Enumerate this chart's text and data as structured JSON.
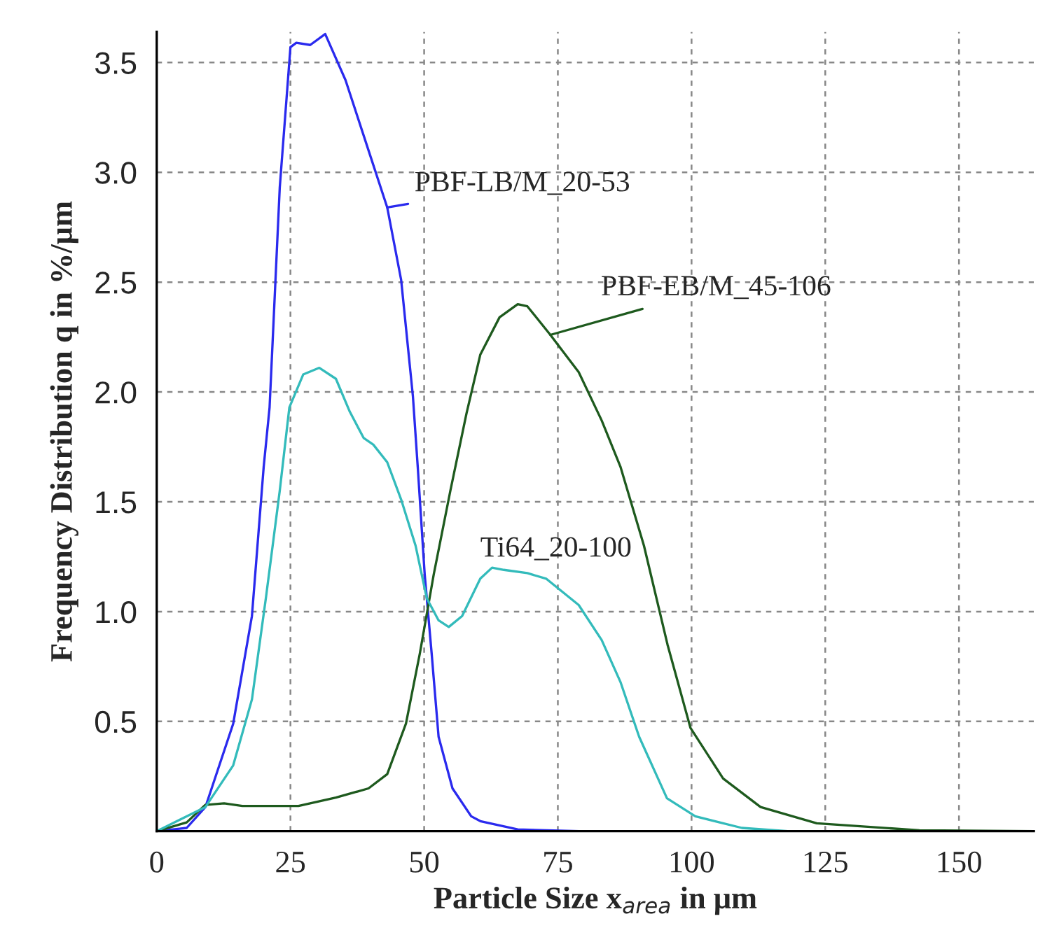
{
  "chart_data": {
    "type": "line",
    "xlabel": "Particle Size x$_{area}$ in μm",
    "ylabel": "Frequency Distribution q in %/μm",
    "xlim": [
      0,
      164
    ],
    "xticks": [
      0,
      25,
      50,
      75,
      100,
      125,
      150
    ],
    "ylim": [
      0,
      3.64
    ],
    "yticks": [
      {
        "value": 0,
        "label": null
      },
      0.5,
      {
        "value": 1,
        "label": "1.0"
      },
      1.5,
      {
        "value": 2,
        "label": "2.0"
      },
      2.5,
      {
        "value": 3,
        "label": "3.0"
      },
      3.5
    ],
    "grid": true,
    "legend": false,
    "marker": "none",
    "line_style": "solid",
    "series": [
      {
        "name": "PBF-LB/M_20-53",
        "color": "#2a2aee",
        "x": [
          0,
          5.6,
          9.1,
          14.3,
          17.8,
          20,
          21.1,
          23,
          25,
          26.1,
          28.7,
          31.5,
          35.3,
          39.6,
          43.1,
          45.7,
          47.9,
          48.8,
          50.1,
          51.4,
          52.7,
          55.3,
          58.8,
          60.5,
          67.5,
          79,
          164
        ],
        "values": [
          0,
          0.015,
          0.11,
          0.49,
          0.98,
          1.66,
          1.93,
          2.93,
          3.57,
          3.59,
          3.58,
          3.63,
          3.42,
          3.1,
          2.84,
          2.51,
          1.98,
          1.66,
          1.17,
          0.81,
          0.43,
          0.195,
          0.068,
          0.046,
          0.008,
          0,
          0
        ]
      },
      {
        "name": "PBF-EB/M_45-106",
        "color": "#1e5a1e",
        "x": [
          0,
          5.6,
          9.1,
          12.6,
          16,
          26.5,
          33.5,
          39.6,
          43.1,
          46.6,
          49.2,
          51.8,
          54.9,
          57.9,
          60.5,
          64.1,
          67.5,
          69.3,
          73.6,
          78.9,
          83.2,
          86.7,
          91.1,
          95.5,
          99.8,
          105.9,
          112.9,
          123.4,
          142.6,
          164
        ],
        "values": [
          0,
          0.04,
          0.12,
          0.127,
          0.115,
          0.115,
          0.153,
          0.195,
          0.26,
          0.49,
          0.81,
          1.17,
          1.55,
          1.9,
          2.17,
          2.34,
          2.4,
          2.39,
          2.26,
          2.09,
          1.87,
          1.66,
          1.3,
          0.85,
          0.47,
          0.24,
          0.11,
          0.036,
          0.004,
          0
        ]
      },
      {
        "name": "Ti64_20-100",
        "color": "#33bbbb",
        "x": [
          0,
          9.1,
          14.3,
          17.8,
          20.4,
          23,
          24.8,
          27.4,
          30.4,
          33.5,
          36.1,
          38.7,
          40.5,
          43.1,
          45.7,
          48.4,
          50.5,
          52.7,
          54.6,
          57.1,
          60.5,
          62.7,
          64.9,
          69.3,
          72.8,
          78.9,
          83.2,
          86.7,
          90.2,
          95.4,
          100.7,
          109.4,
          118,
          164
        ],
        "values": [
          0,
          0.11,
          0.3,
          0.6,
          1.06,
          1.55,
          1.93,
          2.08,
          2.11,
          2.06,
          1.91,
          1.79,
          1.76,
          1.68,
          1.51,
          1.3,
          1.06,
          0.96,
          0.93,
          0.98,
          1.15,
          1.2,
          1.19,
          1.175,
          1.15,
          1.03,
          0.87,
          0.68,
          0.43,
          0.15,
          0.068,
          0.015,
          0,
          0
        ]
      }
    ]
  }
}
